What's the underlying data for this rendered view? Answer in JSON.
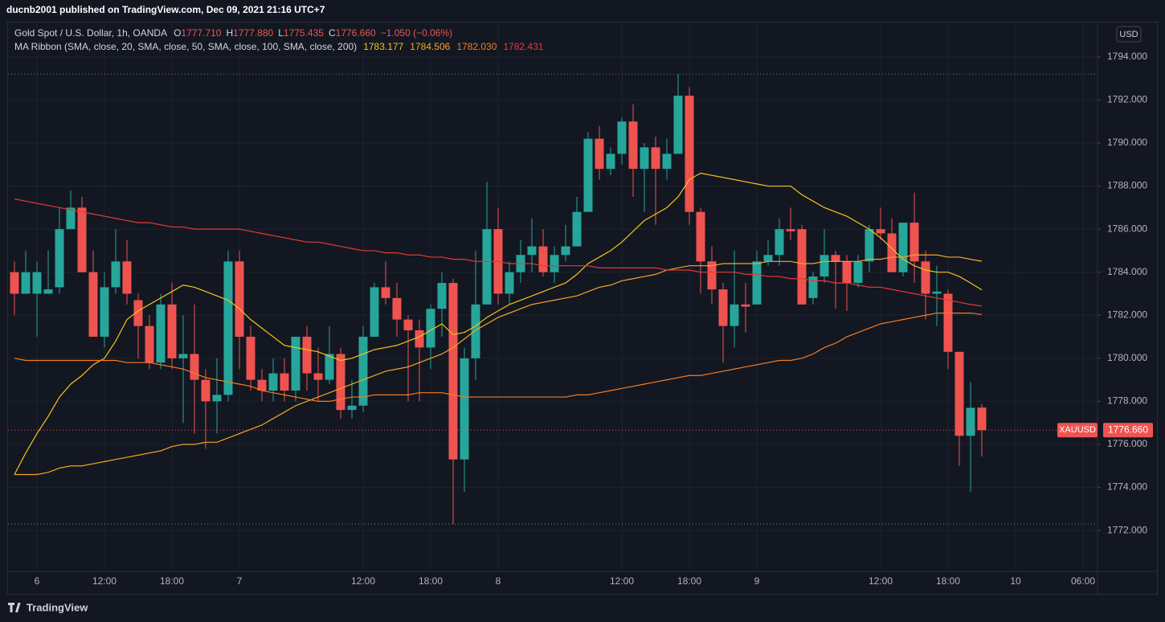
{
  "header": {
    "published": "ducnb2001 published on TradingView.com, Dec 09, 2021 21:16 UTC+7"
  },
  "legend": {
    "symbol": "Gold Spot / U.S. Dollar, 1h, OANDA",
    "ohlc": [
      {
        "key": "O",
        "value": "1777.710"
      },
      {
        "key": "H",
        "value": "1777.880"
      },
      {
        "key": "L",
        "value": "1775.435"
      },
      {
        "key": "C",
        "value": "1776.660"
      }
    ],
    "change": "−1.050 (−0.06%)",
    "indicator": "MA Ribbon (SMA, close, 20, SMA, close, 50, SMA, close, 100, SMA, close, 200)"
  },
  "currency_button": "USD",
  "footer": {
    "brand": "TradingView"
  },
  "chart_data": {
    "type": "candlestick",
    "categories": [
      null,
      null,
      "6",
      null,
      null,
      null,
      null,
      null,
      "12:00",
      null,
      null,
      null,
      null,
      null,
      "18:00",
      null,
      null,
      null,
      null,
      null,
      "7",
      null,
      null,
      null,
      null,
      null,
      null,
      null,
      null,
      null,
      null,
      "12:00",
      null,
      null,
      null,
      null,
      null,
      "18:00",
      null,
      null,
      null,
      null,
      null,
      "8",
      null,
      null,
      null,
      null,
      null,
      null,
      null,
      null,
      null,
      null,
      "12:00",
      null,
      null,
      null,
      null,
      null,
      "18:00",
      null,
      null,
      null,
      null,
      null,
      "9",
      null,
      null,
      null,
      null,
      null,
      null,
      null,
      null,
      null,
      null,
      "12:00",
      null,
      null,
      null,
      null,
      null,
      "18:00",
      null,
      null,
      null,
      null,
      null,
      "10",
      null,
      null,
      null,
      null,
      null,
      "06:00",
      null
    ],
    "up_color": "#26a69a",
    "down_color": "#ef5350",
    "open": [
      1784,
      1783,
      1783,
      1783,
      1783.3,
      1786,
      1787,
      1784,
      1781,
      1783.3,
      1784.5,
      1782.7,
      1781.5,
      1779.8,
      1782.5,
      1780,
      1780.2,
      1779,
      1778,
      1778.3,
      1784.5,
      1781,
      1779,
      1778.5,
      1779.3,
      1778.5,
      1781,
      1779.3,
      1779,
      1780.2,
      1777.6,
      1777.8,
      1781,
      1783.3,
      1782.8,
      1781.8,
      1781.3,
      1780.5,
      1782.3,
      1783.5,
      1775.3,
      1780,
      1782.5,
      1786,
      1783,
      1784,
      1784.8,
      1785.2,
      1784,
      1784.8,
      1785.2,
      1786.8,
      1790.2,
      1788.8,
      1789.5,
      1791,
      1788.8,
      1789.8,
      1788.8,
      1789.5,
      1792.2,
      1786.8,
      1784.5,
      1783.2,
      1781.5,
      1782.5,
      1782.5,
      1784.5,
      1784.8,
      1786,
      1786,
      1782.8,
      1783.8,
      1784.8,
      1784.5,
      1783.5,
      1784.5,
      1786,
      1785.8,
      1784,
      1786.3,
      1784.5,
      1783,
      1783,
      1780.3,
      1776.4,
      1777.71,
      null,
      null,
      null,
      null,
      null,
      null,
      null,
      null,
      null,
      null
    ],
    "high": [
      1784.5,
      1785,
      1784.5,
      1785,
      1787,
      1787.8,
      1787.5,
      1785,
      1784,
      1786,
      1785.5,
      1783,
      1782,
      1783,
      1783.5,
      1782,
      1782.5,
      1779.5,
      1780,
      1785,
      1785,
      1781.5,
      1779.5,
      1780,
      1780,
      1781,
      1781.5,
      1780.5,
      1781.5,
      1780.5,
      1779,
      1781.5,
      1783.5,
      1784.5,
      1783.5,
      1782,
      1781.8,
      1782.5,
      1784,
      1783.7,
      1780.5,
      1785,
      1788.2,
      1787,
      1784.5,
      1785.5,
      1786.5,
      1786,
      1785.2,
      1786.2,
      1787.5,
      1790.5,
      1790.8,
      1789.8,
      1791.2,
      1791.8,
      1790,
      1790.3,
      1790.2,
      1793.2,
      1792.6,
      1787,
      1785.2,
      1783.5,
      1785,
      1783.5,
      1785,
      1785.5,
      1786.5,
      1787,
      1786.2,
      1784,
      1786,
      1785,
      1784.8,
      1784.8,
      1786.2,
      1787,
      1786.5,
      1786.3,
      1787.7,
      1785,
      1784.3,
      1783.2,
      1780.3,
      1778.9,
      1777.88,
      null,
      null,
      null,
      null,
      null,
      null,
      null,
      null,
      null,
      null
    ],
    "low": [
      1782,
      1783,
      1781,
      1783,
      1783,
      1786,
      1784,
      1781,
      1780.5,
      1783,
      1782.5,
      1780,
      1779.5,
      1779.5,
      1779.5,
      1777,
      1776.5,
      1775.8,
      1776.5,
      1778,
      1779.5,
      1778.5,
      1778,
      1778,
      1778,
      1778,
      1778.5,
      1778,
      1778.8,
      1777.2,
      1777.2,
      1777.5,
      1781,
      1782.5,
      1781,
      1778,
      1778,
      1779.5,
      1781,
      1772.3,
      1773.8,
      1779,
      1782.5,
      1782.5,
      1782.5,
      1783.5,
      1784,
      1783.8,
      1783.5,
      1784.5,
      1785.2,
      1786.8,
      1788.3,
      1788.5,
      1789,
      1787.5,
      1786.8,
      1786.2,
      1788.3,
      1789.5,
      1786.2,
      1783,
      1782.5,
      1779.8,
      1780.5,
      1781.2,
      1782.5,
      1784.3,
      1784.3,
      1785.5,
      1782.5,
      1782.5,
      1783.5,
      1782.3,
      1782.2,
      1783.3,
      1784,
      1785.5,
      1784,
      1783.8,
      1783.5,
      1781.8,
      1781.5,
      1779.5,
      1775,
      1773.8,
      1775.435,
      null,
      null,
      null,
      null,
      null,
      null,
      null,
      null,
      null,
      null
    ],
    "close": [
      1783,
      1784,
      1784,
      1783.2,
      1786,
      1787,
      1784,
      1781,
      1783.3,
      1784.5,
      1783,
      1781.5,
      1779.8,
      1782.5,
      1780,
      1780.2,
      1779,
      1778,
      1778.3,
      1784.5,
      1781,
      1779,
      1778.5,
      1779.3,
      1778.5,
      1781,
      1779.3,
      1779,
      1780.2,
      1777.6,
      1777.8,
      1781,
      1783.3,
      1782.8,
      1781.8,
      1781.3,
      1780.5,
      1782.3,
      1783.5,
      1775.3,
      1780,
      1782.5,
      1786,
      1783,
      1784,
      1784.8,
      1785.2,
      1784,
      1784.8,
      1785.2,
      1786.8,
      1790.2,
      1788.8,
      1789.5,
      1791,
      1788.8,
      1789.8,
      1788.8,
      1789.5,
      1792.2,
      1786.8,
      1784.5,
      1783.2,
      1781.5,
      1782.5,
      1782.4,
      1784.5,
      1784.8,
      1786,
      1785.9,
      1782.5,
      1783.8,
      1784.8,
      1784.5,
      1783.5,
      1784.5,
      1786,
      1785.8,
      1784,
      1786.3,
      1784.5,
      1783,
      1783.1,
      1780.3,
      1776.4,
      1777.7,
      1776.66,
      null,
      null,
      null,
      null,
      null,
      null,
      null,
      null,
      null,
      null
    ],
    "series": [
      {
        "color": "#f5c518",
        "value_label": "1783.177",
        "values": [
          1774.6,
          1775.6,
          1776.5,
          1777.3,
          1778.2,
          1778.8,
          1779.2,
          1779.7,
          1780,
          1780.8,
          1781.8,
          1782.2,
          1782.5,
          1782.8,
          1783.1,
          1783.4,
          1783.3,
          1783.1,
          1782.9,
          1782.7,
          1782.3,
          1781.8,
          1781.4,
          1781,
          1780.6,
          1780.5,
          1780.4,
          1780.3,
          1780.1,
          1779.9,
          1780,
          1780.2,
          1780.4,
          1780.5,
          1780.6,
          1780.8,
          1781,
          1781.3,
          1781.6,
          1781.1,
          1781.2,
          1781.5,
          1781.9,
          1782.2,
          1782.5,
          1782.7,
          1782.9,
          1783.1,
          1783.3,
          1783.5,
          1783.9,
          1784.4,
          1784.7,
          1785,
          1785.4,
          1785.9,
          1786.4,
          1786.7,
          1787,
          1787.5,
          1788.3,
          1788.6,
          1788.5,
          1788.4,
          1788.3,
          1788.2,
          1788.1,
          1788,
          1788,
          1788,
          1787.6,
          1787.3,
          1787,
          1786.8,
          1786.6,
          1786.3,
          1786,
          1785.6,
          1785.1,
          1784.6,
          1784.3,
          1784.1,
          1784,
          1784,
          1783.8,
          1783.5,
          1783.177,
          null,
          null,
          null,
          null,
          null,
          null,
          null,
          null,
          null,
          null
        ]
      },
      {
        "color": "#f5a623",
        "value_label": "1784.506",
        "values": [
          1774.6,
          1774.6,
          1774.6,
          1774.7,
          1774.9,
          1775,
          1775,
          1775.1,
          1775.2,
          1775.3,
          1775.4,
          1775.5,
          1775.6,
          1775.7,
          1775.9,
          1776,
          1776,
          1776.1,
          1776.1,
          1776.3,
          1776.5,
          1776.7,
          1776.9,
          1777.2,
          1777.5,
          1777.8,
          1778,
          1778.2,
          1778.4,
          1778.6,
          1778.8,
          1779,
          1779.2,
          1779.4,
          1779.5,
          1779.6,
          1779.8,
          1780,
          1780.2,
          1780.5,
          1780.9,
          1781.3,
          1781.6,
          1781.9,
          1782.1,
          1782.3,
          1782.5,
          1782.6,
          1782.7,
          1782.8,
          1782.9,
          1783.1,
          1783.3,
          1783.4,
          1783.6,
          1783.7,
          1783.8,
          1783.9,
          1784.1,
          1784.2,
          1784.3,
          1784.3,
          1784.3,
          1784.4,
          1784.4,
          1784.4,
          1784.4,
          1784.5,
          1784.5,
          1784.5,
          1784.4,
          1784.4,
          1784.5,
          1784.5,
          1784.5,
          1784.5,
          1784.6,
          1784.6,
          1784.7,
          1784.7,
          1784.8,
          1784.8,
          1784.8,
          1784.7,
          1784.7,
          1784.6,
          1784.506,
          null,
          null,
          null,
          null,
          null,
          null,
          null,
          null,
          null,
          null
        ]
      },
      {
        "color": "#f57c1f",
        "value_label": "1782.030",
        "values": [
          1780,
          1779.9,
          1779.9,
          1779.9,
          1779.9,
          1779.9,
          1779.9,
          1779.9,
          1779.9,
          1779.9,
          1779.8,
          1779.8,
          1779.8,
          1779.7,
          1779.6,
          1779.5,
          1779.3,
          1779.1,
          1779,
          1778.9,
          1778.8,
          1778.7,
          1778.5,
          1778.4,
          1778.3,
          1778.2,
          1778.1,
          1778,
          1778,
          1778.1,
          1778.2,
          1778.2,
          1778.3,
          1778.3,
          1778.3,
          1778.3,
          1778.4,
          1778.4,
          1778.4,
          1778.3,
          1778.2,
          1778.2,
          1778.2,
          1778.2,
          1778.2,
          1778.2,
          1778.2,
          1778.2,
          1778.2,
          1778.2,
          1778.3,
          1778.3,
          1778.4,
          1778.5,
          1778.6,
          1778.7,
          1778.8,
          1778.9,
          1779,
          1779.1,
          1779.2,
          1779.2,
          1779.3,
          1779.4,
          1779.5,
          1779.6,
          1779.7,
          1779.8,
          1779.9,
          1779.9,
          1780,
          1780.2,
          1780.5,
          1780.7,
          1781,
          1781.2,
          1781.4,
          1781.6,
          1781.7,
          1781.8,
          1781.9,
          1782,
          1782.1,
          1782.1,
          1782.1,
          1782.1,
          1782.03,
          null,
          null,
          null,
          null,
          null,
          null,
          null,
          null,
          null,
          null
        ]
      },
      {
        "color": "#e53935",
        "value_label": "1782.431",
        "values": [
          1787.4,
          1787.3,
          1787.2,
          1787.1,
          1787,
          1786.9,
          1786.8,
          1786.7,
          1786.6,
          1786.5,
          1786.4,
          1786.3,
          1786.3,
          1786.2,
          1786.1,
          1786.1,
          1786,
          1786,
          1786,
          1786,
          1786,
          1785.9,
          1785.8,
          1785.7,
          1785.6,
          1785.5,
          1785.4,
          1785.4,
          1785.3,
          1785.2,
          1785.1,
          1785,
          1785,
          1784.9,
          1784.9,
          1784.8,
          1784.8,
          1784.7,
          1784.7,
          1784.6,
          1784.6,
          1784.5,
          1784.5,
          1784.5,
          1784.4,
          1784.4,
          1784.4,
          1784.3,
          1784.3,
          1784.3,
          1784.3,
          1784.3,
          1784.2,
          1784.2,
          1784.2,
          1784.2,
          1784.2,
          1784.2,
          1784.1,
          1784.1,
          1784.1,
          1784,
          1784,
          1784,
          1784,
          1783.9,
          1783.9,
          1783.8,
          1783.8,
          1783.7,
          1783.7,
          1783.6,
          1783.6,
          1783.5,
          1783.5,
          1783.4,
          1783.3,
          1783.3,
          1783.2,
          1783.1,
          1783,
          1782.9,
          1782.8,
          1782.7,
          1782.6,
          1782.5,
          1782.431,
          null,
          null,
          null,
          null,
          null,
          null,
          null,
          null,
          null,
          null
        ]
      }
    ],
    "price_line": {
      "name": "XAUUSD",
      "value": 1776.66,
      "label": "1776.660"
    },
    "ylim": [
      1770.1,
      1795.6
    ],
    "yticks": [
      {
        "value": 1772,
        "label": "1772.000"
      },
      {
        "value": 1774,
        "label": "1774.000"
      },
      {
        "value": 1776,
        "label": "1776.000"
      },
      {
        "value": 1778,
        "label": "1778.000"
      },
      {
        "value": 1780,
        "label": "1780.000"
      },
      {
        "value": 1782,
        "label": "1782.000"
      },
      {
        "value": 1784,
        "label": "1784.000"
      },
      {
        "value": 1786,
        "label": "1786.000"
      },
      {
        "value": 1788,
        "label": "1788.000"
      },
      {
        "value": 1790,
        "label": "1790.000"
      },
      {
        "value": 1792,
        "label": "1792.000"
      },
      {
        "value": 1794,
        "label": "1794.000"
      }
    ],
    "grid": true
  }
}
